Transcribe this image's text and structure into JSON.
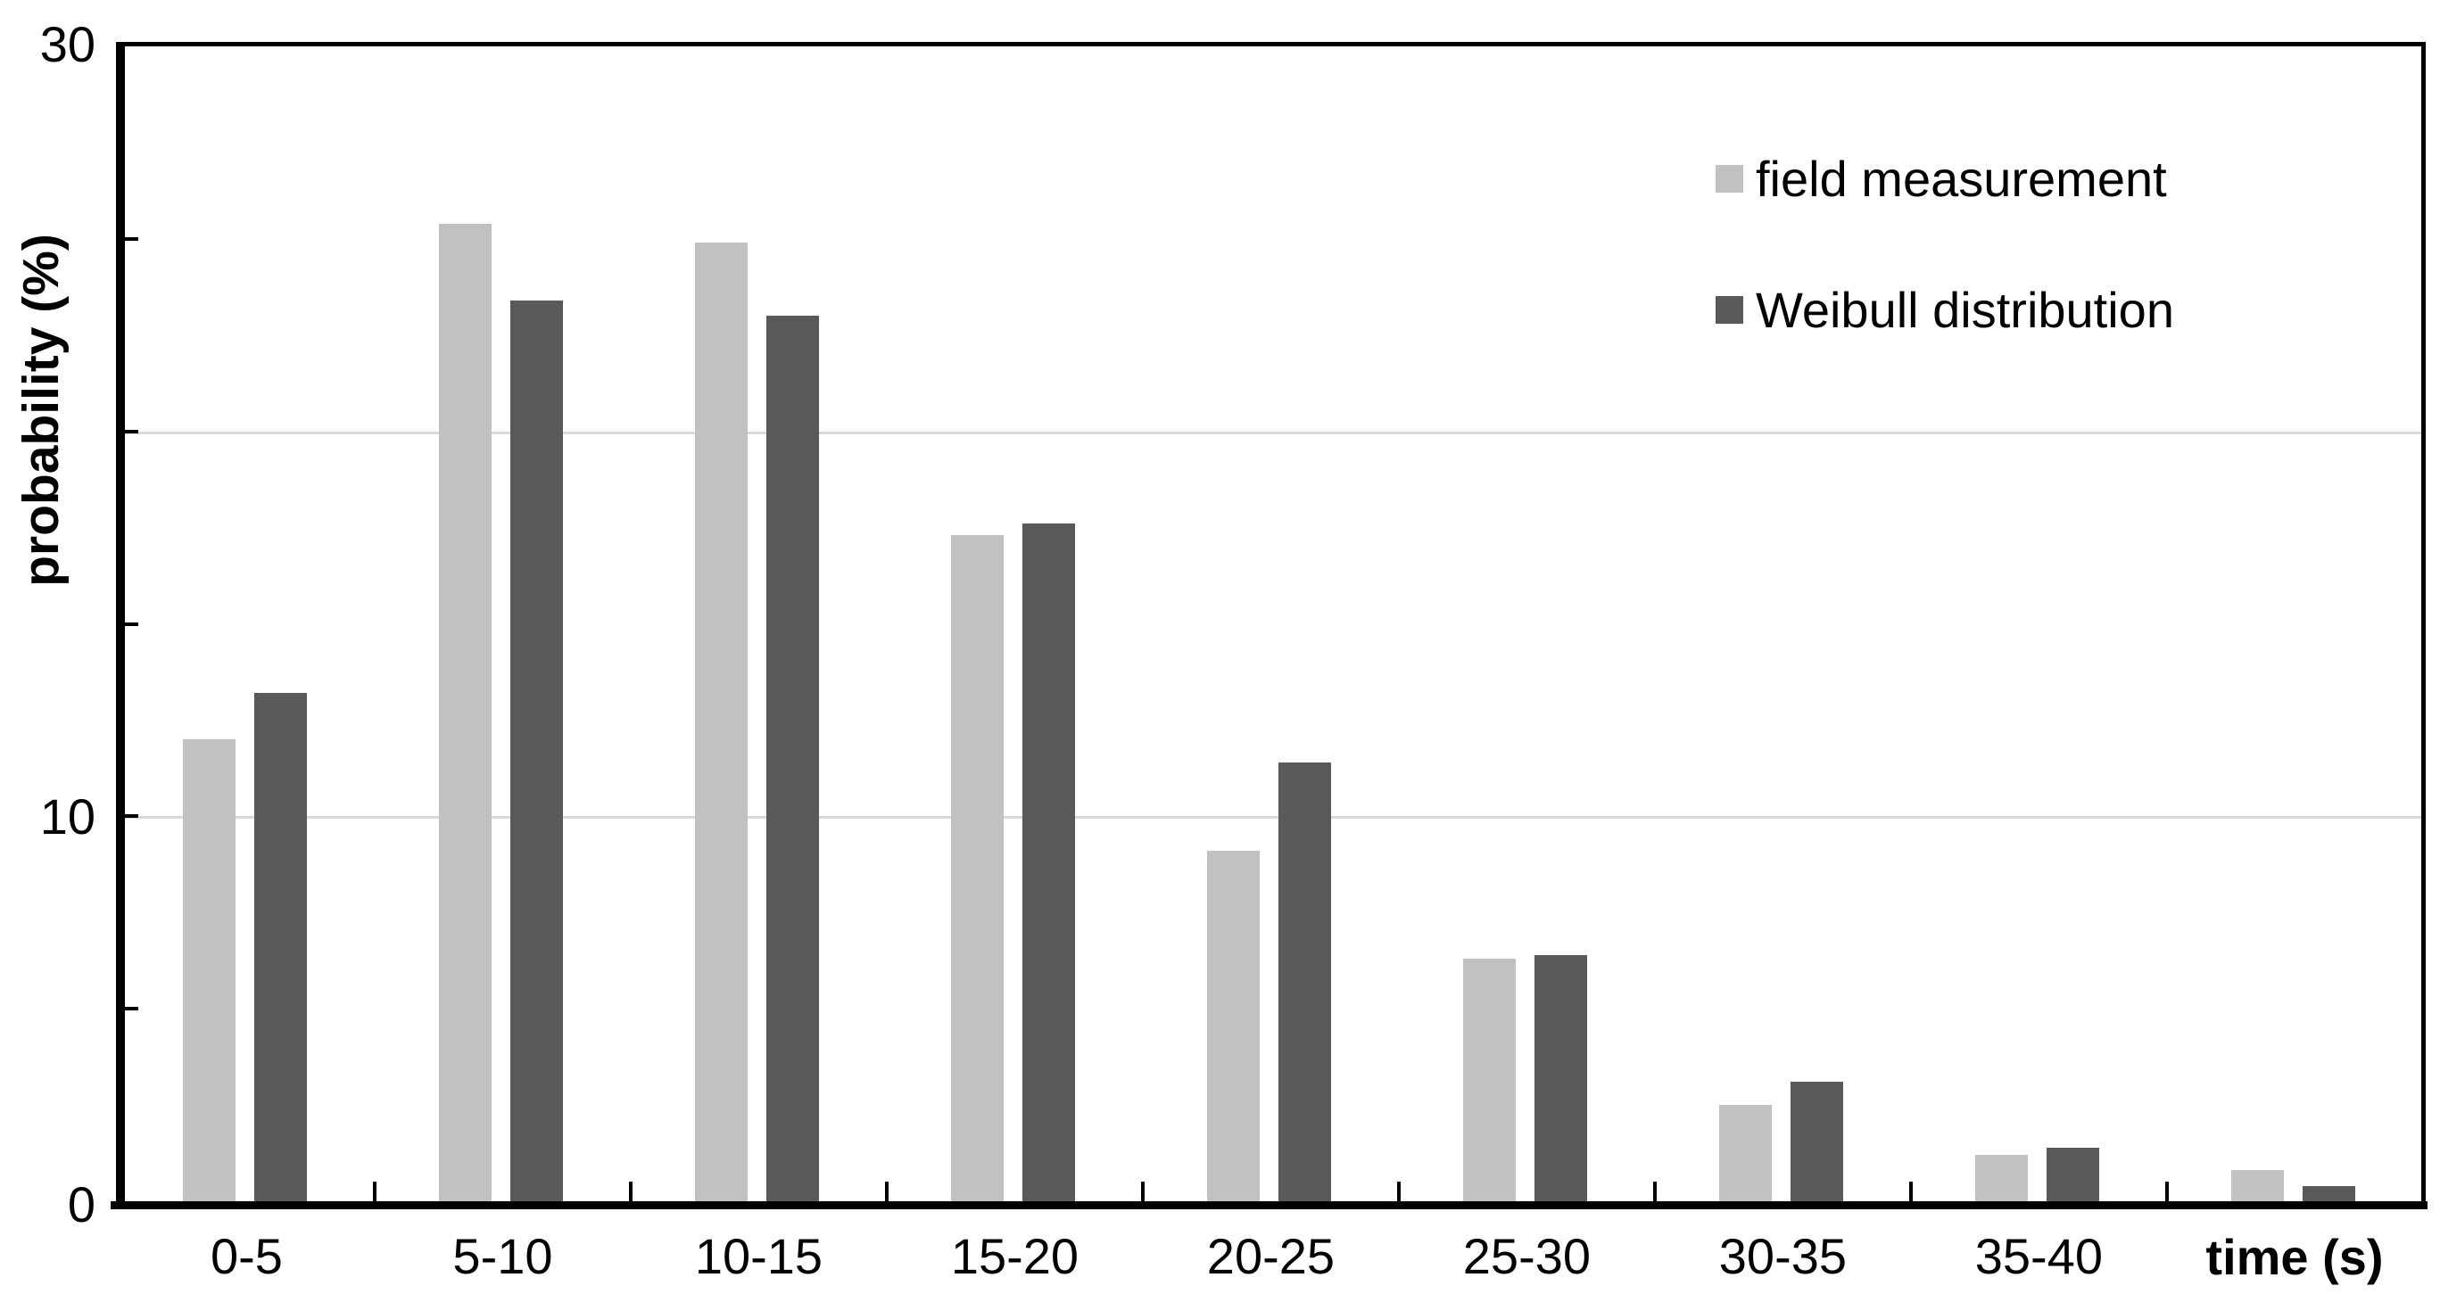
{
  "chart_data": {
    "type": "bar",
    "title": "",
    "ylabel": "probability (%)",
    "xlabel": "time (s)",
    "ylim": [
      0,
      30
    ],
    "grid": "horizontal",
    "gridlines_at": [
      10,
      20
    ],
    "y_minor_ticks": [
      5,
      10,
      15,
      20,
      25
    ],
    "y_axis_labels": [
      {
        "value": 30,
        "label": "30"
      },
      {
        "value": 10,
        "label": "10"
      },
      {
        "value": 0,
        "label": "0"
      }
    ],
    "categories": [
      "0-5",
      "5-10",
      "10-15",
      "15-20",
      "20-25",
      "25-30",
      "30-35",
      "35-40",
      ""
    ],
    "series": [
      {
        "name": "field measurement",
        "color": "#c1c1c1",
        "values": [
          12.0,
          25.4,
          24.9,
          17.3,
          9.1,
          6.3,
          2.5,
          1.2,
          0.8
        ]
      },
      {
        "name": "Weibull distribution",
        "color": "#595959",
        "values": [
          13.2,
          23.4,
          23.0,
          17.6,
          11.4,
          6.4,
          3.1,
          1.4,
          0.4
        ]
      }
    ],
    "legend_position": "top-right",
    "axis_color": "#000000",
    "gridline_color": "#d9d9d9",
    "background_color": "#ffffff"
  }
}
